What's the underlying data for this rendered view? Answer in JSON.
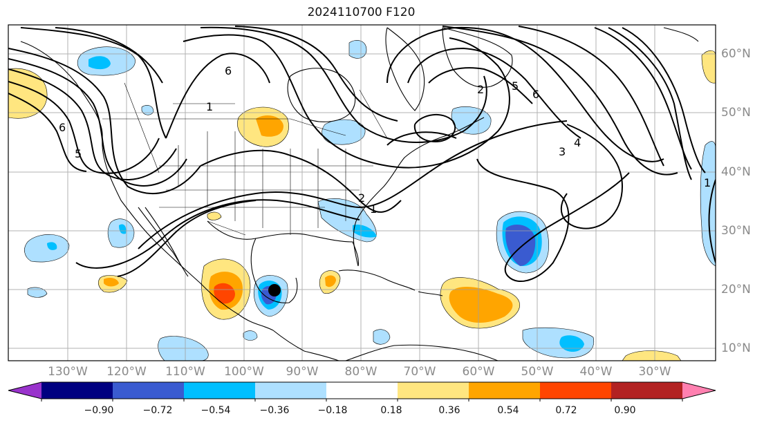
{
  "title": "2024110700 F120",
  "lon_labels": [
    "130°W",
    "120°W",
    "110°W",
    "100°W",
    "90°W",
    "80°W",
    "70°W",
    "60°W",
    "50°W",
    "40°W",
    "30°W"
  ],
  "lat_labels": [
    "60°N",
    "50°N",
    "40°N",
    "30°N",
    "20°N",
    "10°N"
  ],
  "contour_labels": [
    "2",
    "3",
    "4",
    "5",
    "6",
    "1"
  ],
  "colorbar": {
    "tick_labels": [
      "−0.90",
      "−0.72",
      "−0.54",
      "−0.36",
      "−0.18",
      "0.18",
      "0.36",
      "0.54",
      "0.72",
      "0.90"
    ],
    "colors": [
      "#9933cc",
      "#000080",
      "#3a5bd0",
      "#00bfff",
      "#aee0ff",
      "#ffffff",
      "#ffe680",
      "#ffa500",
      "#ff4500",
      "#b22222",
      "#ff80b0"
    ]
  },
  "marker": {
    "description_color": "#000000"
  }
}
